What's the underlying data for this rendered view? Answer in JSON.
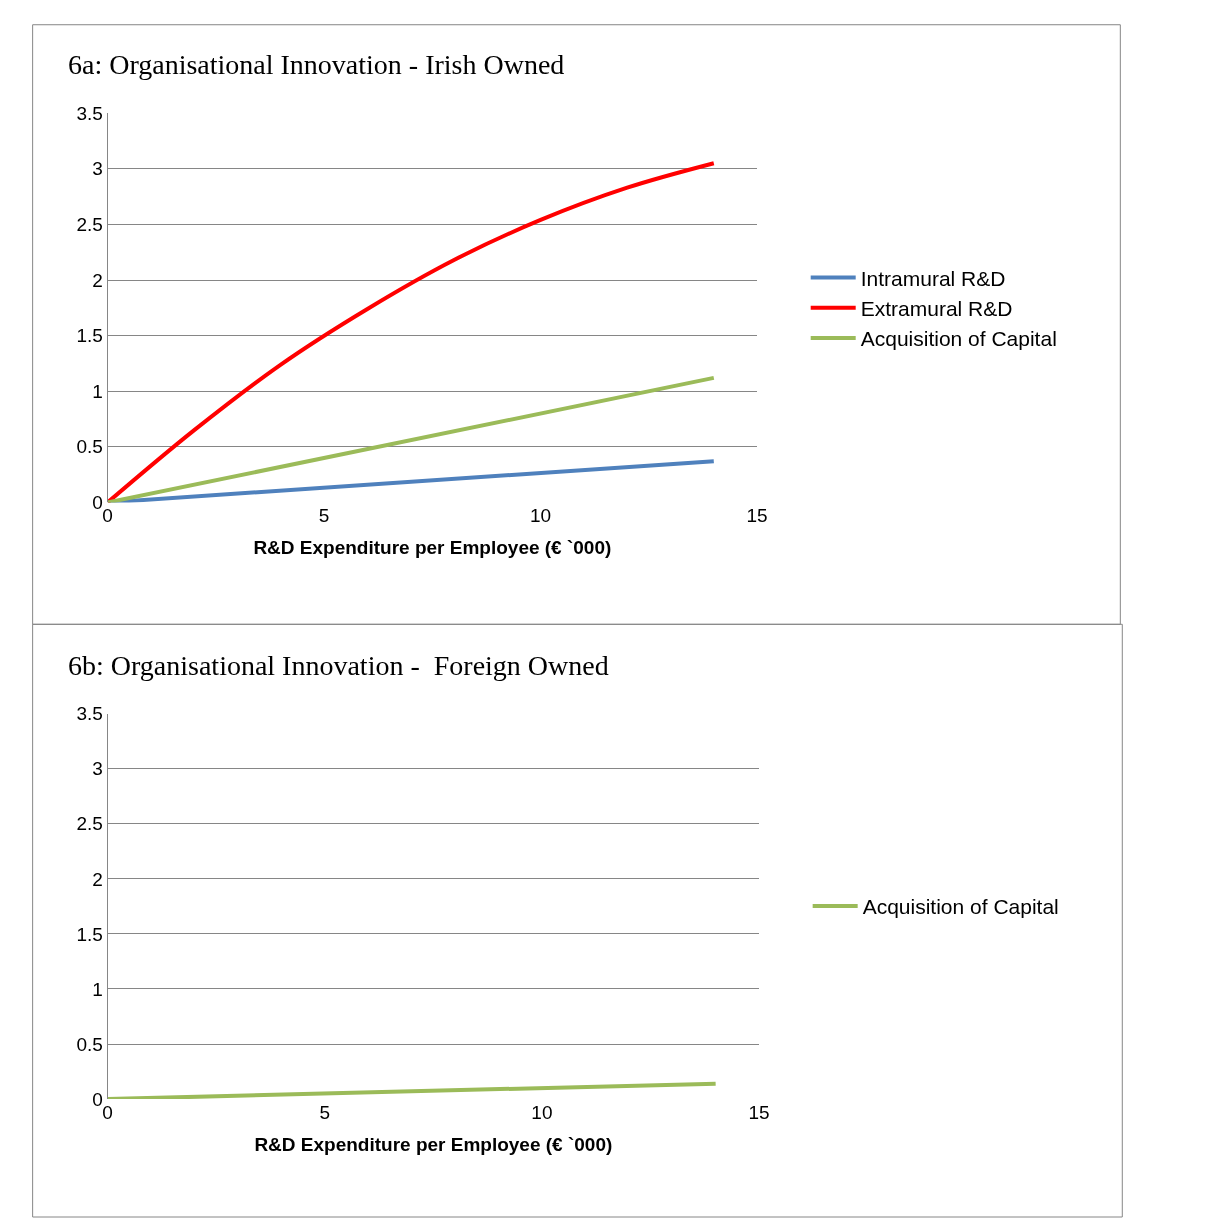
{
  "chart_data": [
    {
      "type": "line",
      "title": "6a: Organisational Innovation - Irish Owned",
      "xlabel": "R&D Expenditure per Employee (€ `000)",
      "xlim": [
        0,
        15
      ],
      "xticks": [
        0,
        5,
        10,
        15
      ],
      "ylim": [
        0,
        3.5
      ],
      "yticks": [
        0,
        0.5,
        1,
        1.5,
        2,
        2.5,
        3,
        3.5
      ],
      "grid": "y",
      "legend": "right",
      "series": [
        {
          "name": "Intramural R&D",
          "color": "#4f81bd",
          "x": [
            0,
            14
          ],
          "values": [
            0,
            0.37
          ]
        },
        {
          "name": "Extramural R&D",
          "color": "#ff0000",
          "x": [
            0,
            2,
            4,
            6,
            8,
            10,
            12,
            14
          ],
          "values": [
            0,
            0.65,
            1.24,
            1.74,
            2.18,
            2.54,
            2.83,
            3.05
          ]
        },
        {
          "name": "Acquisition of Capital",
          "color": "#9bbb59",
          "x": [
            0,
            14
          ],
          "values": [
            0,
            1.12
          ]
        }
      ]
    },
    {
      "type": "line",
      "title": "6b: Organisational Innovation -  Foreign Owned",
      "xlabel": "R&D Expenditure per Employee (€ `000)",
      "xlim": [
        0,
        15
      ],
      "xticks": [
        0,
        5,
        10,
        15
      ],
      "ylim": [
        0,
        3.5
      ],
      "yticks": [
        0,
        0.5,
        1,
        1.5,
        2,
        2.5,
        3,
        3.5
      ],
      "grid": "y",
      "legend": "right",
      "series": [
        {
          "name": "Acquisition of Capital",
          "color": "#9bbb59",
          "x": [
            0,
            14
          ],
          "values": [
            0,
            0.14
          ]
        }
      ]
    }
  ]
}
